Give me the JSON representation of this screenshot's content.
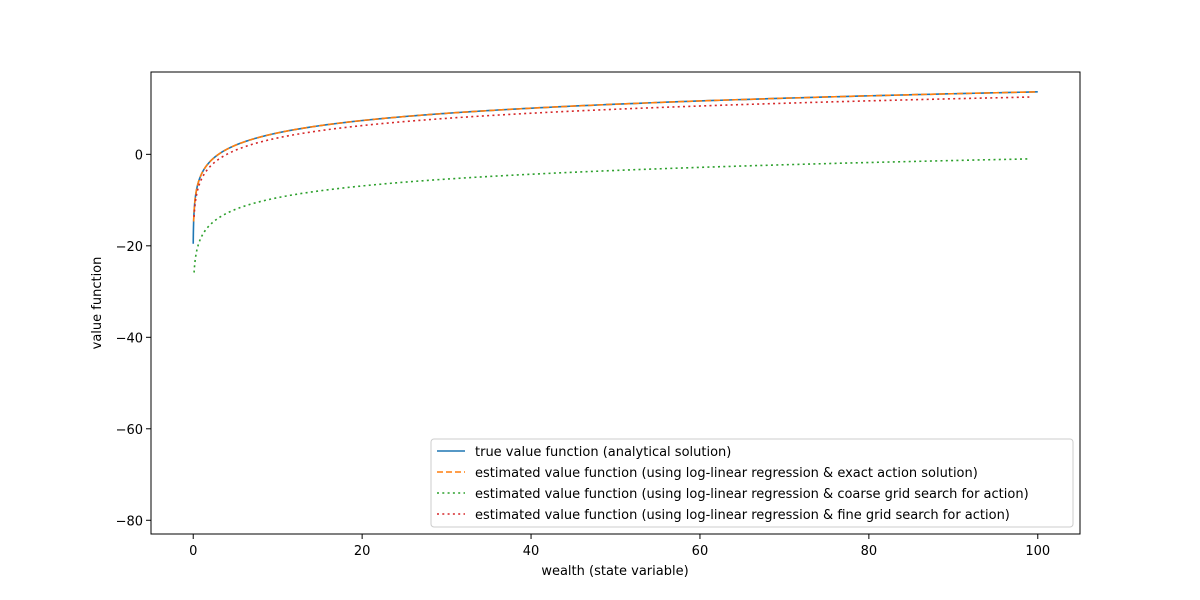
{
  "chart_data": {
    "type": "line",
    "title": "",
    "xlabel": "wealth (state variable)",
    "ylabel": "value function",
    "xlim": [
      -5,
      105
    ],
    "ylim": [
      -83,
      18
    ],
    "xticks": [
      0,
      20,
      40,
      60,
      80,
      100
    ],
    "xtick_labels": [
      "0",
      "20",
      "40",
      "60",
      "80",
      "100"
    ],
    "yticks": [
      0,
      -20,
      -40,
      -60,
      -80
    ],
    "ytick_labels": [
      "0",
      "−20",
      "−40",
      "−60",
      "−80"
    ],
    "grid": false,
    "legend_position": "lower-right",
    "series": [
      {
        "name": "true value function (analytical solution)",
        "color": "#1f77b4",
        "style": "solid",
        "model": "log",
        "a": -4.3,
        "b": 3.9,
        "x0": 0.02,
        "x_range": [
          0.0,
          100.0
        ]
      },
      {
        "name": "estimated value function (using log-linear regression & exact action solution)",
        "color": "#ff7f0e",
        "style": "dashed",
        "model": "log",
        "a": -4.3,
        "b": 3.9,
        "x0": 0.02,
        "x_range": [
          0.05,
          100.0
        ]
      },
      {
        "name": "estimated value function (using log-linear regression & coarse grid search for action)",
        "color": "#2ca02c",
        "style": "dotted",
        "model": "log",
        "a": -18.0,
        "b": 3.7,
        "x0": 0.02,
        "x_range": [
          0.1,
          99.0
        ]
      },
      {
        "name": "estimated value function (using log-linear regression & fine grid search for action)",
        "color": "#d62728",
        "style": "dotted",
        "model": "log",
        "a": -5.4,
        "b": 3.9,
        "x0": 0.02,
        "x_range": [
          0.1,
          99.0
        ]
      }
    ]
  }
}
